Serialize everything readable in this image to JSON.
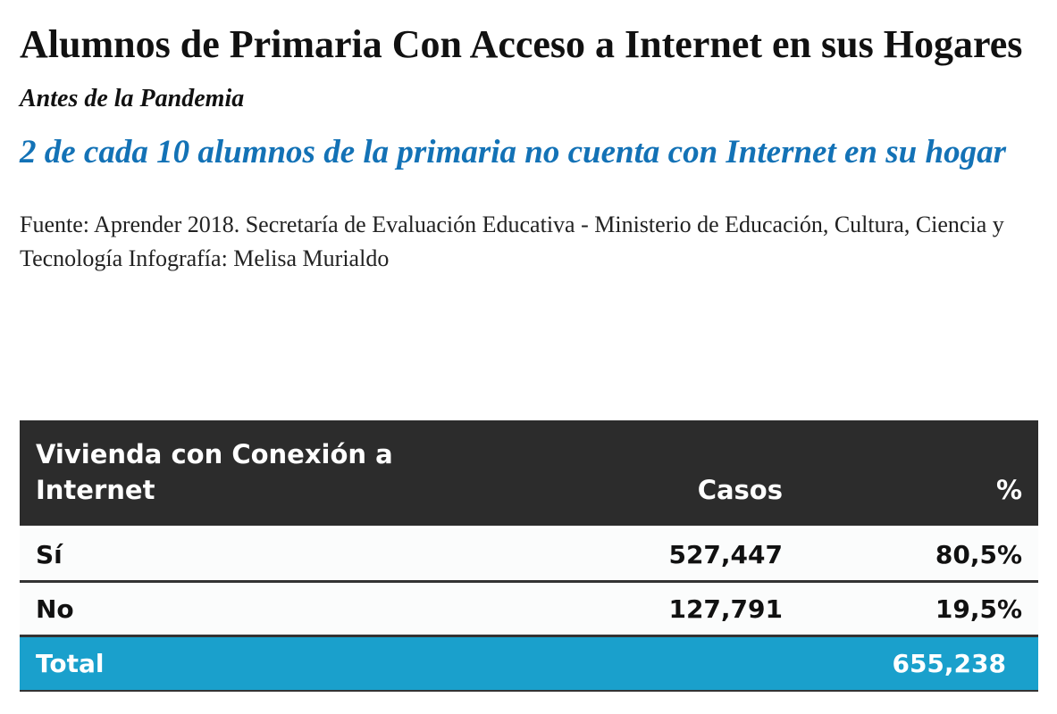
{
  "title": "Alumnos de Primaria Con Acceso a Internet en sus Hogares",
  "subtitle": "Antes de la Pandemia",
  "headline": "2 de cada 10 alumnos de la primaria no cuenta con Internet en su hogar",
  "source": "Fuente: Aprender 2018. Secretaría de Evaluación Educativa - Ministerio de Educación, Cultura, Ciencia y Tecnología Infografía: Melisa Murialdo",
  "table": {
    "headers": [
      "Vivienda con Conexión a Internet",
      "Casos",
      "%"
    ],
    "rows": [
      [
        "Sí",
        "527,447",
        "80,5%"
      ],
      [
        "No",
        "127,791",
        "19,5%"
      ]
    ],
    "total": {
      "label": "Total",
      "value": "655,238"
    }
  },
  "colors": {
    "headline": "#1372b6",
    "header_bg": "#2c2c2c",
    "total_bg": "#1aa0cc"
  }
}
